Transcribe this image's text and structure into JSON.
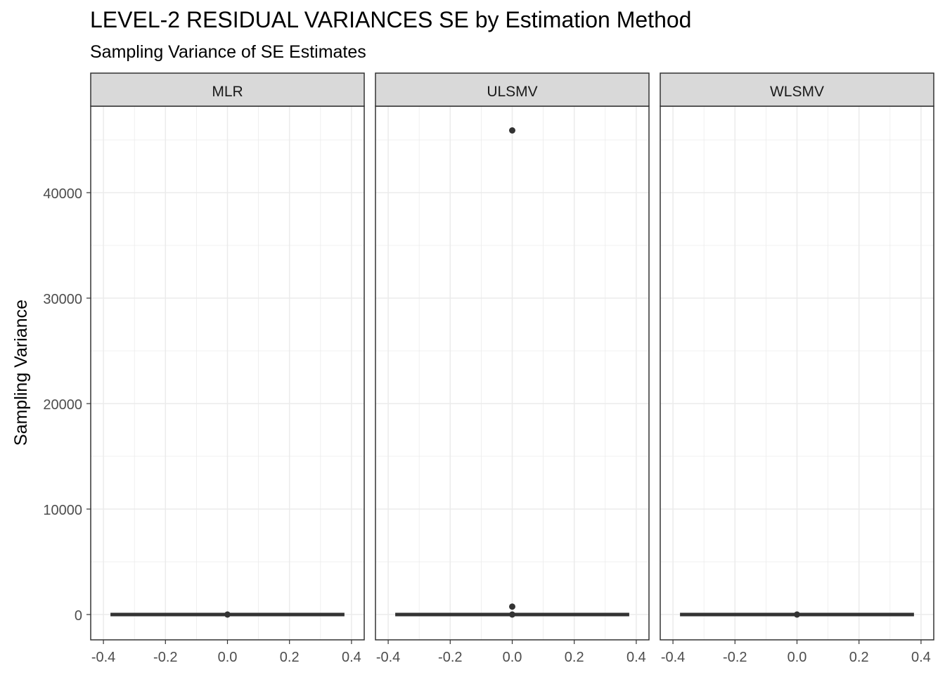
{
  "chart_data": {
    "type": "boxplot",
    "title": "LEVEL-2 RESIDUAL VARIANCES SE by Estimation Method",
    "subtitle": "Sampling Variance of SE Estimates",
    "xlabel": "",
    "ylabel": "Sampling Variance",
    "xlim": [
      -0.4,
      0.4
    ],
    "ylim": [
      -2300,
      48500
    ],
    "x_ticks": [
      -0.4,
      -0.2,
      0.0,
      0.2,
      0.4
    ],
    "x_tick_labels": [
      "-0.4",
      "-0.2",
      "0.0",
      "0.2",
      "0.4"
    ],
    "y_ticks": [
      0,
      10000,
      20000,
      30000,
      40000
    ],
    "y_tick_labels": [
      "0",
      "10000",
      "20000",
      "30000",
      "40000"
    ],
    "grid": true,
    "facets": [
      {
        "label": "MLR",
        "box": {
          "xmin": -0.375,
          "xmax": 0.375,
          "q1": 0,
          "median": 0,
          "q3": 0
        },
        "points": [
          0
        ]
      },
      {
        "label": "ULSMV",
        "box": {
          "xmin": -0.375,
          "xmax": 0.375,
          "q1": 0,
          "median": 0,
          "q3": 0
        },
        "points": [
          0,
          750,
          45900
        ]
      },
      {
        "label": "WLSMV",
        "box": {
          "xmin": -0.375,
          "xmax": 0.375,
          "q1": 0,
          "median": 0,
          "q3": 0
        },
        "points": [
          0
        ]
      }
    ],
    "colors": {
      "strip_bg": "#d9d9d9",
      "panel_border": "#333333",
      "grid": "#ebebeb",
      "marks": "#333333",
      "tick_text": "#4d4d4d"
    }
  }
}
